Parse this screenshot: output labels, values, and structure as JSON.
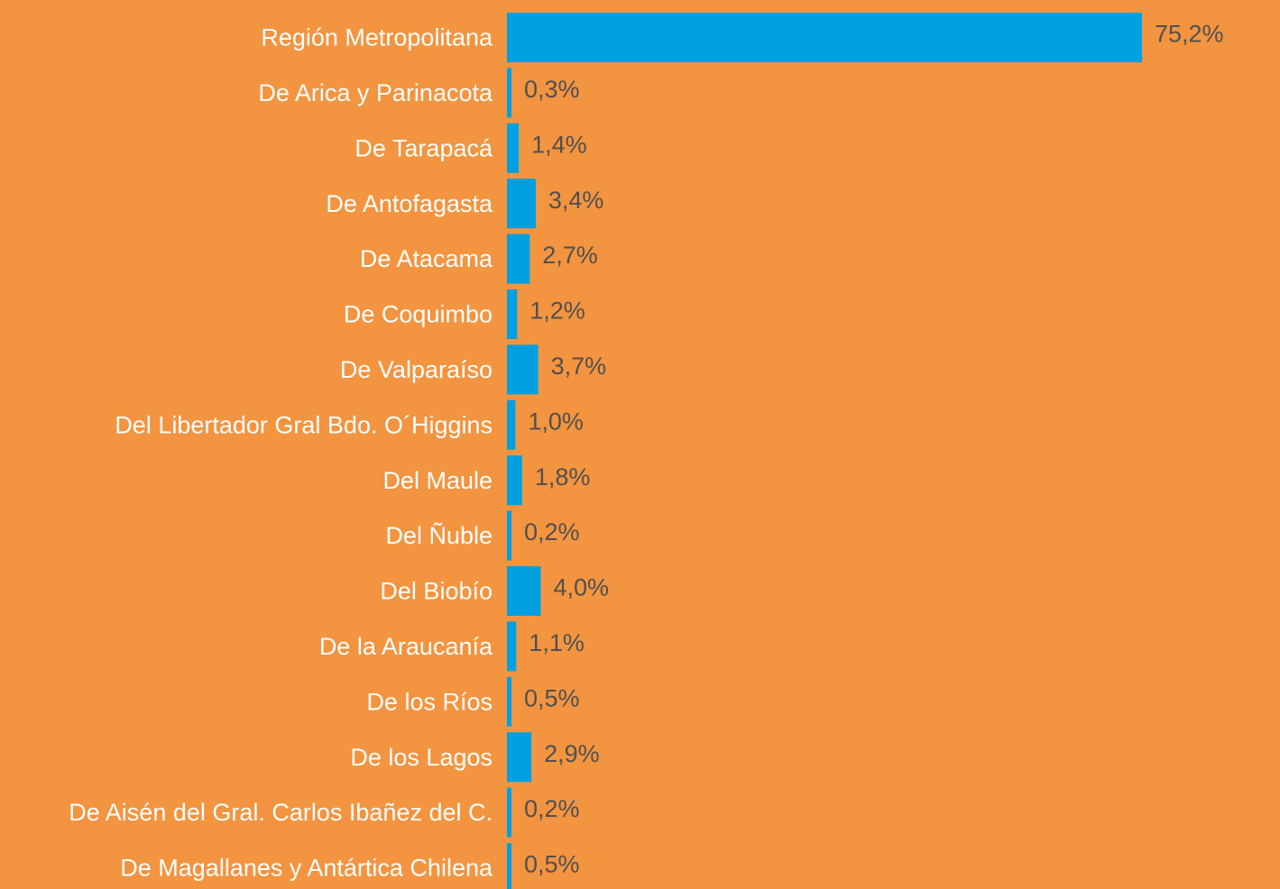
{
  "chart_data": {
    "type": "bar",
    "orientation": "horizontal",
    "categories": [
      "Región Metropolitana",
      "De Arica y Parinacota",
      "De Tarapacá",
      "De Antofagasta",
      "De Atacama",
      "De Coquimbo",
      "De Valparaíso",
      "Del Libertador Gral Bdo. O´Higgins",
      "Del Maule",
      "Del Ñuble",
      "Del Biobío",
      "De la Araucanía",
      "De los Ríos",
      "De los Lagos",
      "De Aisén del Gral. Carlos Ibañez del C.",
      "De Magallanes y Antártica Chilena"
    ],
    "values": [
      75.2,
      0.3,
      1.4,
      3.4,
      2.7,
      1.2,
      3.7,
      1.0,
      1.8,
      0.2,
      4.0,
      1.1,
      0.5,
      2.9,
      0.2,
      0.5
    ],
    "value_labels": [
      "75,2%",
      "0,3%",
      "1,4%",
      "3,4%",
      "2,7%",
      "1,2%",
      "3,7%",
      "1,0%",
      "1,8%",
      "0,2%",
      "4,0%",
      "1,1%",
      "0,5%",
      "2,9%",
      "0,2%",
      "0,5%"
    ],
    "color": "#00a0e0"
  }
}
